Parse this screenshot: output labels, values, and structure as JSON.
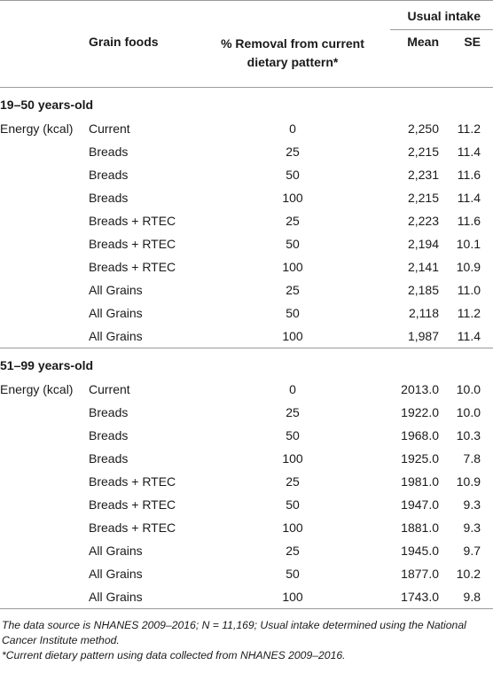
{
  "header": {
    "usual_intake": "Usual intake",
    "col_grain": "Grain foods",
    "col_removal_line1": "% Removal from current",
    "col_removal_line2": "dietary pattern*",
    "col_mean": "Mean",
    "col_se": "SE"
  },
  "groups": [
    {
      "title": "19–50 years-old",
      "rows": [
        {
          "nutrient": "Energy (kcal)",
          "grain": "Current",
          "removal": "0",
          "mean": "2,250",
          "se": "11.2"
        },
        {
          "nutrient": "",
          "grain": "Breads",
          "removal": "25",
          "mean": "2,215",
          "se": "11.4"
        },
        {
          "nutrient": "",
          "grain": "Breads",
          "removal": "50",
          "mean": "2,231",
          "se": "11.6"
        },
        {
          "nutrient": "",
          "grain": "Breads",
          "removal": "100",
          "mean": "2,215",
          "se": "11.4"
        },
        {
          "nutrient": "",
          "grain": "Breads + RTEC",
          "removal": "25",
          "mean": "2,223",
          "se": "11.6"
        },
        {
          "nutrient": "",
          "grain": "Breads + RTEC",
          "removal": "50",
          "mean": "2,194",
          "se": "10.1"
        },
        {
          "nutrient": "",
          "grain": "Breads + RTEC",
          "removal": "100",
          "mean": "2,141",
          "se": "10.9"
        },
        {
          "nutrient": "",
          "grain": "All Grains",
          "removal": "25",
          "mean": "2,185",
          "se": "11.0"
        },
        {
          "nutrient": "",
          "grain": "All Grains",
          "removal": "50",
          "mean": "2,118",
          "se": "11.2"
        },
        {
          "nutrient": "",
          "grain": "All Grains",
          "removal": "100",
          "mean": "1,987",
          "se": "11.4"
        }
      ]
    },
    {
      "title": "51–99 years-old",
      "rows": [
        {
          "nutrient": "Energy (kcal)",
          "grain": "Current",
          "removal": "0",
          "mean": "2013.0",
          "se": "10.0"
        },
        {
          "nutrient": "",
          "grain": "Breads",
          "removal": "25",
          "mean": "1922.0",
          "se": "10.0"
        },
        {
          "nutrient": "",
          "grain": "Breads",
          "removal": "50",
          "mean": "1968.0",
          "se": "10.3"
        },
        {
          "nutrient": "",
          "grain": "Breads",
          "removal": "100",
          "mean": "1925.0",
          "se": "7.8"
        },
        {
          "nutrient": "",
          "grain": "Breads + RTEC",
          "removal": "25",
          "mean": "1981.0",
          "se": "10.9"
        },
        {
          "nutrient": "",
          "grain": "Breads + RTEC",
          "removal": "50",
          "mean": "1947.0",
          "se": "9.3"
        },
        {
          "nutrient": "",
          "grain": "Breads + RTEC",
          "removal": "100",
          "mean": "1881.0",
          "se": "9.3"
        },
        {
          "nutrient": "",
          "grain": "All Grains",
          "removal": "25",
          "mean": "1945.0",
          "se": "9.7"
        },
        {
          "nutrient": "",
          "grain": "All Grains",
          "removal": "50",
          "mean": "1877.0",
          "se": "10.2"
        },
        {
          "nutrient": "",
          "grain": "All Grains",
          "removal": "100",
          "mean": "1743.0",
          "se": "9.8"
        }
      ]
    }
  ],
  "footnotes": {
    "line1": "The data source is NHANES 2009–2016; N = 11,169; Usual intake determined using the National Cancer Institute method.",
    "line2": "*Current dietary pattern using data collected from NHANES 2009–2016."
  }
}
